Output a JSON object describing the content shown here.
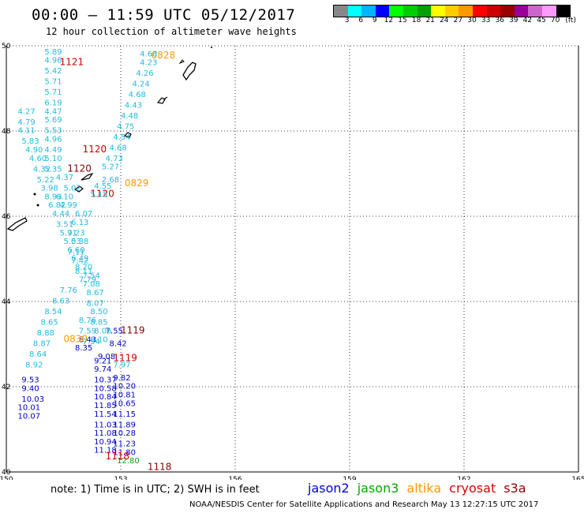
{
  "title": "00:00 – 11:59 UTC 05/12/2017",
  "subtitle": "12 hour collection of altimeter wave heights",
  "colorbar": {
    "colors": [
      "#888888",
      "#00ffff",
      "#00b4ff",
      "#0000ff",
      "#00ff00",
      "#00cc00",
      "#00a000",
      "#ffff00",
      "#ffcc00",
      "#ff9900",
      "#ff0000",
      "#cc0000",
      "#990000",
      "#990099",
      "#cc66cc",
      "#ff99ff",
      "#000000"
    ],
    "ticks": [
      "3",
      "6",
      "9",
      "12",
      "15",
      "18",
      "21",
      "24",
      "27",
      "30",
      "33",
      "36",
      "39",
      "42",
      "45",
      "70",
      "(ft)"
    ]
  },
  "map": {
    "lat_labels": [
      "50",
      "48",
      "46",
      "44",
      "42",
      "40"
    ],
    "lon_labels": [
      "150",
      "153",
      "156",
      "159",
      "162",
      "165"
    ],
    "lat_range": [
      40,
      50
    ],
    "lon_range": [
      150,
      165
    ],
    "grid": "dotted"
  },
  "chart_data": {
    "type": "scatter",
    "series": [
      {
        "name": "jason2",
        "color": "#0000cc",
        "points": [
          {
            "lon": 152.3,
            "lat": 42.55,
            "v": "9.21"
          },
          {
            "lon": 152.3,
            "lat": 42.35,
            "v": "9.74"
          },
          {
            "lon": 152.3,
            "lat": 42.1,
            "v": "10.37"
          },
          {
            "lon": 152.3,
            "lat": 41.9,
            "v": "10.58"
          },
          {
            "lon": 152.3,
            "lat": 41.7,
            "v": "10.84"
          },
          {
            "lon": 152.3,
            "lat": 41.5,
            "v": "11.85"
          },
          {
            "lon": 152.3,
            "lat": 41.3,
            "v": "11.54"
          },
          {
            "lon": 152.3,
            "lat": 41.05,
            "v": "11.03"
          },
          {
            "lon": 152.3,
            "lat": 40.85,
            "v": "11.08"
          },
          {
            "lon": 152.3,
            "lat": 40.65,
            "v": "10.94"
          },
          {
            "lon": 152.3,
            "lat": 40.45,
            "v": "11.18"
          },
          {
            "lon": 152.8,
            "lat": 42.15,
            "v": "9.82"
          },
          {
            "lon": 152.8,
            "lat": 41.95,
            "v": "10.20"
          },
          {
            "lon": 152.8,
            "lat": 41.75,
            "v": "10.81"
          },
          {
            "lon": 152.8,
            "lat": 41.55,
            "v": "10.65"
          },
          {
            "lon": 152.8,
            "lat": 41.3,
            "v": "11.15"
          },
          {
            "lon": 152.8,
            "lat": 41.05,
            "v": "11.89"
          },
          {
            "lon": 152.8,
            "lat": 40.85,
            "v": "10.28"
          },
          {
            "lon": 152.8,
            "lat": 40.6,
            "v": "11.23"
          },
          {
            "lon": 152.8,
            "lat": 40.4,
            "v": "11.80"
          },
          {
            "lon": 150.4,
            "lat": 41.9,
            "v": "9.40"
          },
          {
            "lon": 150.4,
            "lat": 41.65,
            "v": "10.03"
          },
          {
            "lon": 150.3,
            "lat": 41.45,
            "v": "10.01"
          },
          {
            "lon": 150.3,
            "lat": 41.25,
            "v": "10.07"
          },
          {
            "lon": 150.4,
            "lat": 42.1,
            "v": "9.53"
          },
          {
            "lon": 151.8,
            "lat": 42.85,
            "v": "8.35"
          },
          {
            "lon": 151.9,
            "lat": 43.05,
            "v": "8.43"
          },
          {
            "lon": 152.4,
            "lat": 42.65,
            "v": "9.08"
          },
          {
            "lon": 152.7,
            "lat": 42.95,
            "v": "8.42"
          },
          {
            "lon": 152.6,
            "lat": 43.25,
            "v": "7.55"
          }
        ]
      },
      {
        "name": "jason3",
        "color": "#00aa00",
        "points": [
          {
            "lon": 152.9,
            "lat": 40.2,
            "v": "12.80"
          }
        ]
      },
      {
        "name": "altika",
        "color": "#ff9900",
        "points": [
          {
            "lon": 153.8,
            "lat": 49.7,
            "v": "0828"
          },
          {
            "lon": 153.1,
            "lat": 46.7,
            "v": "0829"
          },
          {
            "lon": 151.5,
            "lat": 43.05,
            "v": "0830"
          }
        ]
      },
      {
        "name": "cryosat",
        "color": "#cc0000",
        "points": [
          {
            "lon": 151.4,
            "lat": 49.55,
            "v": "1121"
          },
          {
            "lon": 152.0,
            "lat": 47.5,
            "v": "1120"
          },
          {
            "lon": 152.2,
            "lat": 46.45,
            "v": "1120"
          },
          {
            "lon": 152.8,
            "lat": 42.6,
            "v": "1119"
          },
          {
            "lon": 152.6,
            "lat": 40.3,
            "v": "1118"
          }
        ]
      },
      {
        "name": "s3a",
        "color": "#880000",
        "points": [
          {
            "lon": 153.0,
            "lat": 43.25,
            "v": "1119"
          },
          {
            "lon": 153.7,
            "lat": 40.05,
            "v": "1118"
          },
          {
            "lon": 151.6,
            "lat": 47.05,
            "v": "1120"
          }
        ]
      },
      {
        "name": "",
        "color": "#22bbdd",
        "points": [
          {
            "lon": 151.0,
            "lat": 49.8,
            "v": "5.89"
          },
          {
            "lon": 151.0,
            "lat": 49.6,
            "v": "4.96"
          },
          {
            "lon": 151.0,
            "lat": 49.35,
            "v": "5.42"
          },
          {
            "lon": 151.0,
            "lat": 49.1,
            "v": "5.71"
          },
          {
            "lon": 151.0,
            "lat": 48.85,
            "v": "5.71"
          },
          {
            "lon": 151.0,
            "lat": 48.6,
            "v": "6.19"
          },
          {
            "lon": 151.0,
            "lat": 48.4,
            "v": "4.47"
          },
          {
            "lon": 151.0,
            "lat": 48.2,
            "v": "5.69"
          },
          {
            "lon": 151.0,
            "lat": 47.95,
            "v": "5.53"
          },
          {
            "lon": 151.0,
            "lat": 47.75,
            "v": "4.96"
          },
          {
            "lon": 151.0,
            "lat": 47.5,
            "v": "4.49"
          },
          {
            "lon": 151.0,
            "lat": 47.3,
            "v": "5.10"
          },
          {
            "lon": 151.0,
            "lat": 47.05,
            "v": "5.35"
          },
          {
            "lon": 150.3,
            "lat": 48.4,
            "v": "4.27"
          },
          {
            "lon": 150.3,
            "lat": 48.15,
            "v": "4.79"
          },
          {
            "lon": 150.3,
            "lat": 47.95,
            "v": "4.11"
          },
          {
            "lon": 150.4,
            "lat": 47.7,
            "v": "5.83"
          },
          {
            "lon": 150.5,
            "lat": 47.5,
            "v": "4.90"
          },
          {
            "lon": 150.6,
            "lat": 47.3,
            "v": "4.60"
          },
          {
            "lon": 150.7,
            "lat": 47.05,
            "v": "4.32"
          },
          {
            "lon": 150.8,
            "lat": 46.8,
            "v": "5.22"
          },
          {
            "lon": 150.9,
            "lat": 46.6,
            "v": "3.98"
          },
          {
            "lon": 151.0,
            "lat": 46.4,
            "v": "8.93"
          },
          {
            "lon": 151.1,
            "lat": 46.2,
            "v": "6.82"
          },
          {
            "lon": 151.2,
            "lat": 46.0,
            "v": "4.44"
          },
          {
            "lon": 151.3,
            "lat": 45.75,
            "v": "3.51"
          },
          {
            "lon": 151.4,
            "lat": 45.55,
            "v": "5.91"
          },
          {
            "lon": 151.5,
            "lat": 45.35,
            "v": "5.03"
          },
          {
            "lon": 151.6,
            "lat": 45.1,
            "v": "7.11"
          },
          {
            "lon": 151.7,
            "lat": 44.9,
            "v": "7.42"
          },
          {
            "lon": 151.8,
            "lat": 44.65,
            "v": "8.11"
          },
          {
            "lon": 151.9,
            "lat": 44.45,
            "v": "7.79"
          },
          {
            "lon": 151.4,
            "lat": 44.2,
            "v": "7.76"
          },
          {
            "lon": 151.2,
            "lat": 43.95,
            "v": "8.63"
          },
          {
            "lon": 151.0,
            "lat": 43.7,
            "v": "8.54"
          },
          {
            "lon": 150.9,
            "lat": 43.45,
            "v": "8.65"
          },
          {
            "lon": 150.8,
            "lat": 43.2,
            "v": "8.88"
          },
          {
            "lon": 150.7,
            "lat": 42.95,
            "v": "8.87"
          },
          {
            "lon": 150.6,
            "lat": 42.7,
            "v": "8.64"
          },
          {
            "lon": 150.5,
            "lat": 42.45,
            "v": "8.92"
          },
          {
            "lon": 153.5,
            "lat": 49.75,
            "v": "4.68"
          },
          {
            "lon": 153.5,
            "lat": 49.55,
            "v": "4.23"
          },
          {
            "lon": 153.4,
            "lat": 49.3,
            "v": "4.26"
          },
          {
            "lon": 153.3,
            "lat": 49.05,
            "v": "4.24"
          },
          {
            "lon": 153.2,
            "lat": 48.8,
            "v": "4.68"
          },
          {
            "lon": 153.1,
            "lat": 48.55,
            "v": "4.43"
          },
          {
            "lon": 153.0,
            "lat": 48.3,
            "v": "4.48"
          },
          {
            "lon": 152.9,
            "lat": 48.05,
            "v": "4.75"
          },
          {
            "lon": 152.8,
            "lat": 47.8,
            "v": "4.54"
          },
          {
            "lon": 152.7,
            "lat": 47.55,
            "v": "4.68"
          },
          {
            "lon": 152.6,
            "lat": 47.3,
            "v": "4.73"
          },
          {
            "lon": 152.5,
            "lat": 47.1,
            "v": "5.27"
          },
          {
            "lon": 151.3,
            "lat": 46.85,
            "v": "4.37"
          },
          {
            "lon": 152.3,
            "lat": 46.65,
            "v": "4.55"
          },
          {
            "lon": 152.2,
            "lat": 46.45,
            "v": "5.15"
          },
          {
            "lon": 151.5,
            "lat": 46.6,
            "v": "5.02"
          },
          {
            "lon": 151.3,
            "lat": 46.4,
            "v": "6.10"
          },
          {
            "lon": 151.4,
            "lat": 46.2,
            "v": "4.99"
          },
          {
            "lon": 151.8,
            "lat": 46.0,
            "v": "6.07"
          },
          {
            "lon": 151.7,
            "lat": 45.8,
            "v": "6.13"
          },
          {
            "lon": 151.6,
            "lat": 45.55,
            "v": "7.23"
          },
          {
            "lon": 151.7,
            "lat": 45.35,
            "v": "5.38"
          },
          {
            "lon": 151.6,
            "lat": 45.15,
            "v": "6.60"
          },
          {
            "lon": 151.7,
            "lat": 44.95,
            "v": "6.49"
          },
          {
            "lon": 151.8,
            "lat": 44.75,
            "v": "8.20"
          },
          {
            "lon": 152.0,
            "lat": 44.55,
            "v": "7.54"
          },
          {
            "lon": 152.0,
            "lat": 44.35,
            "v": "7.08"
          },
          {
            "lon": 152.1,
            "lat": 44.15,
            "v": "8.67"
          },
          {
            "lon": 152.1,
            "lat": 43.9,
            "v": "8.07"
          },
          {
            "lon": 152.2,
            "lat": 43.7,
            "v": "8.50"
          },
          {
            "lon": 151.9,
            "lat": 43.5,
            "v": "8.76"
          },
          {
            "lon": 152.2,
            "lat": 43.45,
            "v": "8.85"
          },
          {
            "lon": 152.3,
            "lat": 43.25,
            "v": "8.06"
          },
          {
            "lon": 151.9,
            "lat": 43.25,
            "v": "7.59"
          },
          {
            "lon": 152.0,
            "lat": 43.0,
            "v": "7.54"
          },
          {
            "lon": 152.2,
            "lat": 43.05,
            "v": "8.10"
          },
          {
            "lon": 152.8,
            "lat": 42.45,
            "v": "7.97"
          },
          {
            "lon": 152.5,
            "lat": 46.8,
            "v": "2.68"
          }
        ]
      }
    ]
  },
  "note": "note: 1) Time is in UTC; 2) SWH is in feet",
  "legend": [
    {
      "label": "jason2",
      "color": "#0000dd"
    },
    {
      "label": "jason3",
      "color": "#00aa00"
    },
    {
      "label": "altika",
      "color": "#ff9900"
    },
    {
      "label": "cryosat",
      "color": "#dd0000"
    },
    {
      "label": "s3a",
      "color": "#990000"
    }
  ],
  "credit": "NOAA/NESDIS Center for Satellite Applications and Research    May 13 12:27:15 UTC 2017"
}
